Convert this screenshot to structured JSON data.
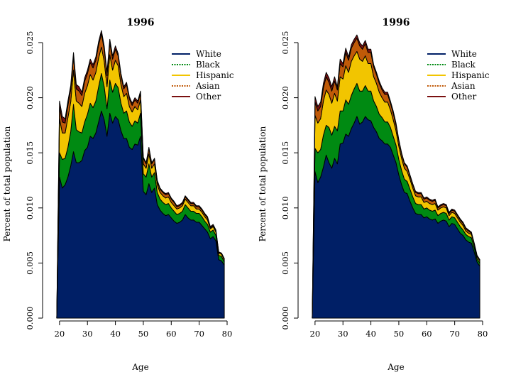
{
  "chart_data": [
    {
      "type": "area",
      "stacked": true,
      "title": "1996",
      "xlabel": "Age",
      "ylabel": "Percent of total population",
      "xlim": [
        18,
        80
      ],
      "ylim": [
        0,
        0.025
      ],
      "x_ticks": [
        "20",
        "30",
        "40",
        "50",
        "60",
        "70",
        "80"
      ],
      "y_ticks": [
        "0.000",
        "0.005",
        "0.010",
        "0.015",
        "0.020",
        "0.025"
      ],
      "x": [
        19,
        20,
        21,
        22,
        23,
        24,
        25,
        26,
        27,
        28,
        29,
        30,
        31,
        32,
        33,
        34,
        35,
        36,
        37,
        38,
        39,
        40,
        41,
        42,
        43,
        44,
        45,
        46,
        47,
        48,
        49,
        50,
        51,
        52,
        53,
        54,
        55,
        56,
        57,
        58,
        59,
        60,
        61,
        62,
        63,
        64,
        65,
        66,
        67,
        68,
        69,
        70,
        71,
        72,
        73,
        74,
        75,
        76,
        77,
        78,
        79
      ],
      "series": [
        {
          "name": "White",
          "color": "#001f66",
          "values": [
            0.0,
            0.0128,
            0.0118,
            0.0121,
            0.0128,
            0.0138,
            0.0151,
            0.0141,
            0.0141,
            0.0143,
            0.0152,
            0.0155,
            0.0165,
            0.0163,
            0.0168,
            0.0178,
            0.0188,
            0.018,
            0.0165,
            0.0186,
            0.0177,
            0.0183,
            0.018,
            0.017,
            0.0163,
            0.0163,
            0.0155,
            0.0153,
            0.0158,
            0.0157,
            0.0165,
            0.0115,
            0.0112,
            0.0122,
            0.0114,
            0.0118,
            0.0103,
            0.0098,
            0.0095,
            0.0093,
            0.0094,
            0.0091,
            0.0088,
            0.0086,
            0.0087,
            0.0089,
            0.0094,
            0.0091,
            0.0089,
            0.0089,
            0.0087,
            0.0087,
            0.0084,
            0.0081,
            0.0078,
            0.0072,
            0.0074,
            0.007,
            0.0053,
            0.0052,
            0.0048
          ]
        },
        {
          "name": "Black",
          "color": "#008a12",
          "values": [
            0.0,
            0.0022,
            0.0026,
            0.0024,
            0.0027,
            0.0031,
            0.0043,
            0.003,
            0.0028,
            0.0025,
            0.0026,
            0.003,
            0.003,
            0.0028,
            0.0029,
            0.0032,
            0.0034,
            0.003,
            0.0025,
            0.003,
            0.0028,
            0.003,
            0.0029,
            0.0025,
            0.0023,
            0.0025,
            0.0023,
            0.0021,
            0.0021,
            0.002,
            0.0021,
            0.0016,
            0.0016,
            0.0018,
            0.0014,
            0.0014,
            0.0011,
            0.001,
            0.001,
            0.001,
            0.001,
            0.0009,
            0.0009,
            0.0008,
            0.0008,
            0.0008,
            0.0009,
            0.0009,
            0.0008,
            0.0008,
            0.0008,
            0.0008,
            0.0008,
            0.0007,
            0.0007,
            0.0006,
            0.0006,
            0.0005,
            0.0004,
            0.0004,
            0.0003
          ]
        },
        {
          "name": "Hispanic",
          "color": "#f2c500",
          "values": [
            0.0,
            0.0031,
            0.0024,
            0.0023,
            0.0027,
            0.0027,
            0.0031,
            0.0026,
            0.0026,
            0.0024,
            0.0026,
            0.0026,
            0.0026,
            0.0025,
            0.0026,
            0.0026,
            0.0024,
            0.0023,
            0.002,
            0.0023,
            0.002,
            0.0021,
            0.002,
            0.0017,
            0.0015,
            0.0016,
            0.0014,
            0.0013,
            0.0013,
            0.0012,
            0.0012,
            0.0009,
            0.0008,
            0.0009,
            0.0008,
            0.0008,
            0.0007,
            0.0006,
            0.0006,
            0.0006,
            0.0006,
            0.0005,
            0.0005,
            0.0005,
            0.0005,
            0.0005,
            0.0005,
            0.0005,
            0.0005,
            0.0005,
            0.0004,
            0.0004,
            0.0004,
            0.0004,
            0.0004,
            0.0003,
            0.0003,
            0.0003,
            0.0002,
            0.0002,
            0.0002
          ]
        },
        {
          "name": "Asian",
          "color": "#c05a08",
          "values": [
            0.0,
            0.0011,
            0.001,
            0.0009,
            0.0011,
            0.0011,
            0.0012,
            0.0011,
            0.0011,
            0.001,
            0.0011,
            0.0011,
            0.0011,
            0.0011,
            0.0011,
            0.0012,
            0.0012,
            0.0011,
            0.001,
            0.0011,
            0.001,
            0.001,
            0.0009,
            0.0008,
            0.0007,
            0.0008,
            0.0007,
            0.0006,
            0.0006,
            0.0006,
            0.0006,
            0.0005,
            0.0004,
            0.0005,
            0.0004,
            0.0004,
            0.0003,
            0.0003,
            0.0003,
            0.0003,
            0.0003,
            0.0003,
            0.0003,
            0.0002,
            0.0002,
            0.0002,
            0.0002,
            0.0002,
            0.0002,
            0.0002,
            0.0002,
            0.0002,
            0.0002,
            0.0002,
            0.0002,
            0.0001,
            0.0001,
            0.0001,
            0.0001,
            0.0001,
            0.0001
          ]
        },
        {
          "name": "Other",
          "color": "#7a1010",
          "values": [
            0.0,
            0.0005,
            0.0005,
            0.0004,
            0.0004,
            0.0004,
            0.0004,
            0.0004,
            0.0004,
            0.0003,
            0.0003,
            0.0003,
            0.0003,
            0.0003,
            0.0003,
            0.0003,
            0.0003,
            0.0003,
            0.0003,
            0.0003,
            0.0003,
            0.0003,
            0.0002,
            0.0002,
            0.0002,
            0.0002,
            0.0002,
            0.0002,
            0.0002,
            0.0002,
            0.0002,
            0.0001,
            0.0001,
            0.0001,
            0.0001,
            0.0001,
            0.0001,
            0.0001,
            0.0001,
            0.0001,
            0.0001,
            0.0001,
            0.0001,
            0.0001,
            0.0001,
            0.0001,
            0.0001,
            0.0001,
            0.0001,
            0.0001,
            0.0001,
            0.0001,
            0.0001,
            0.0001,
            0.0001,
            0.0001,
            0.0001,
            0.0001,
            0.0,
            0.0,
            0.0
          ]
        }
      ]
    },
    {
      "type": "area",
      "stacked": true,
      "title": "1996",
      "xlabel": "Age",
      "ylabel": "Percent of total population",
      "xlim": [
        18,
        80
      ],
      "ylim": [
        0,
        0.025
      ],
      "x_ticks": [
        "20",
        "30",
        "40",
        "50",
        "60",
        "70",
        "80"
      ],
      "y_ticks": [
        "0.000",
        "0.005",
        "0.010",
        "0.015",
        "0.020",
        "0.025"
      ],
      "x": [
        19,
        20,
        21,
        22,
        23,
        24,
        25,
        26,
        27,
        28,
        29,
        30,
        31,
        32,
        33,
        34,
        35,
        36,
        37,
        38,
        39,
        40,
        41,
        42,
        43,
        44,
        45,
        46,
        47,
        48,
        49,
        50,
        51,
        52,
        53,
        54,
        55,
        56,
        57,
        58,
        59,
        60,
        61,
        62,
        63,
        64,
        65,
        66,
        67,
        68,
        69,
        70,
        71,
        72,
        73,
        74,
        75,
        76,
        77,
        78,
        79
      ],
      "series": [
        {
          "name": "White",
          "color": "#001f66",
          "values": [
            0.0,
            0.0133,
            0.0123,
            0.0128,
            0.0137,
            0.0148,
            0.0141,
            0.0136,
            0.0145,
            0.014,
            0.0158,
            0.0159,
            0.0167,
            0.0165,
            0.0172,
            0.0177,
            0.0183,
            0.0176,
            0.0178,
            0.0183,
            0.018,
            0.0179,
            0.0173,
            0.0169,
            0.0163,
            0.0161,
            0.0158,
            0.0158,
            0.0155,
            0.0148,
            0.0141,
            0.013,
            0.0121,
            0.0114,
            0.0113,
            0.0106,
            0.01,
            0.0095,
            0.0094,
            0.0094,
            0.0091,
            0.0092,
            0.009,
            0.0089,
            0.009,
            0.0086,
            0.0088,
            0.0089,
            0.0088,
            0.0083,
            0.0086,
            0.0085,
            0.0081,
            0.0077,
            0.0075,
            0.0071,
            0.0069,
            0.0068,
            0.006,
            0.0051,
            0.0047
          ]
        },
        {
          "name": "Black",
          "color": "#008a12",
          "values": [
            0.0,
            0.0021,
            0.0027,
            0.0025,
            0.0029,
            0.0027,
            0.0032,
            0.003,
            0.0029,
            0.003,
            0.003,
            0.0029,
            0.0031,
            0.0029,
            0.003,
            0.0031,
            0.003,
            0.003,
            0.0028,
            0.0028,
            0.0026,
            0.0027,
            0.0024,
            0.0023,
            0.0022,
            0.0021,
            0.002,
            0.002,
            0.0018,
            0.0017,
            0.0016,
            0.0014,
            0.0013,
            0.0012,
            0.0011,
            0.0011,
            0.001,
            0.0009,
            0.0009,
            0.0009,
            0.0008,
            0.0008,
            0.0008,
            0.0008,
            0.0008,
            0.0007,
            0.0007,
            0.0007,
            0.0007,
            0.0006,
            0.0006,
            0.0006,
            0.0006,
            0.0006,
            0.0005,
            0.0005,
            0.0005,
            0.0005,
            0.0004,
            0.0003,
            0.0003
          ]
        },
        {
          "name": "Hispanic",
          "color": "#f2c500",
          "values": [
            0.0,
            0.003,
            0.0027,
            0.0028,
            0.0031,
            0.0032,
            0.003,
            0.0029,
            0.003,
            0.0027,
            0.0031,
            0.0029,
            0.0031,
            0.0029,
            0.0031,
            0.003,
            0.0029,
            0.0029,
            0.0027,
            0.0027,
            0.0025,
            0.0025,
            0.0022,
            0.0021,
            0.002,
            0.0018,
            0.0018,
            0.0018,
            0.0016,
            0.0015,
            0.0013,
            0.0012,
            0.0011,
            0.001,
            0.0009,
            0.0009,
            0.0008,
            0.0007,
            0.0007,
            0.0007,
            0.0006,
            0.0006,
            0.0006,
            0.0006,
            0.0006,
            0.0005,
            0.0005,
            0.0005,
            0.0005,
            0.0004,
            0.0004,
            0.0004,
            0.0004,
            0.0004,
            0.0004,
            0.0003,
            0.0003,
            0.0003,
            0.0003,
            0.0002,
            0.0002
          ]
        },
        {
          "name": "Asian",
          "color": "#c05a08",
          "values": [
            0.0,
            0.0012,
            0.0011,
            0.0011,
            0.0012,
            0.0012,
            0.0011,
            0.0011,
            0.0011,
            0.001,
            0.0012,
            0.0011,
            0.0012,
            0.0011,
            0.0012,
            0.0012,
            0.0012,
            0.0012,
            0.0011,
            0.0011,
            0.001,
            0.001,
            0.0009,
            0.0008,
            0.0008,
            0.0007,
            0.0007,
            0.0007,
            0.0006,
            0.0006,
            0.0005,
            0.0005,
            0.0004,
            0.0004,
            0.0004,
            0.0003,
            0.0003,
            0.0003,
            0.0003,
            0.0003,
            0.0003,
            0.0003,
            0.0003,
            0.0003,
            0.0003,
            0.0002,
            0.0002,
            0.0002,
            0.0002,
            0.0002,
            0.0002,
            0.0002,
            0.0002,
            0.0002,
            0.0002,
            0.0002,
            0.0002,
            0.0001,
            0.0001,
            0.0001,
            0.0001
          ]
        },
        {
          "name": "Other",
          "color": "#7a1010",
          "values": [
            0.0,
            0.0005,
            0.0004,
            0.0004,
            0.0004,
            0.0004,
            0.0004,
            0.0004,
            0.0004,
            0.0003,
            0.0004,
            0.0003,
            0.0004,
            0.0003,
            0.0003,
            0.0003,
            0.0003,
            0.0003,
            0.0003,
            0.0003,
            0.0003,
            0.0003,
            0.0002,
            0.0002,
            0.0002,
            0.0002,
            0.0002,
            0.0002,
            0.0002,
            0.0002,
            0.0002,
            0.0001,
            0.0001,
            0.0001,
            0.0001,
            0.0001,
            0.0001,
            0.0001,
            0.0001,
            0.0001,
            0.0001,
            0.0001,
            0.0001,
            0.0001,
            0.0001,
            0.0001,
            0.0001,
            0.0001,
            0.0001,
            0.0001,
            0.0001,
            0.0001,
            0.0001,
            0.0001,
            0.0001,
            0.0001,
            0.0001,
            0.0001,
            0.0,
            0.0,
            0.0
          ]
        }
      ]
    }
  ]
}
